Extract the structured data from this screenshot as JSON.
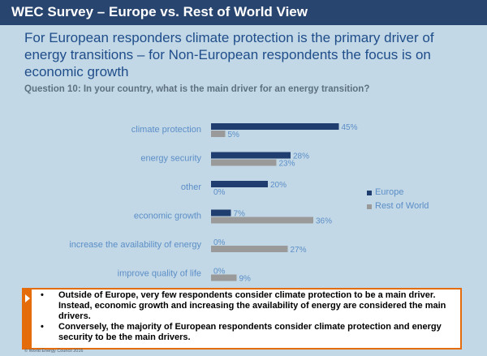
{
  "header": {
    "title": "WEC Survey – Europe vs. Rest of World View"
  },
  "headline": "For European responders climate protection is the primary driver of energy transitions – for Non-European respondents the focus is on economic growth",
  "question": "Question 10: In your country, what is the main driver for an energy transition?",
  "chart_data": {
    "type": "bar",
    "orientation": "horizontal",
    "categories": [
      "climate protection",
      "energy security",
      "other",
      "economic growth",
      "increase the availability of energy",
      "improve quality of life"
    ],
    "series": [
      {
        "name": "Europe",
        "values": [
          45,
          28,
          20,
          7,
          0,
          0
        ],
        "color": "#1f3d6f"
      },
      {
        "name": "Rest of World",
        "values": [
          5,
          23,
          0,
          36,
          27,
          9
        ],
        "color": "#9a9a9a"
      }
    ],
    "value_suffix": "%",
    "xlim": [
      0,
      50
    ],
    "grid": false,
    "legend_position": "right"
  },
  "callout": {
    "bullets": [
      "Outside of Europe, very few respondents consider climate protection to be a main driver. Instead, economic growth and increasing the availability of energy are considered the main drivers.",
      "Conversely, the majority of European respondents consider climate protection and energy security to be the main drivers."
    ]
  },
  "footer": {
    "copyright": "© World Energy Council 2016"
  },
  "colors": {
    "header_bg": "#28456f",
    "headline": "#1e4d8a",
    "background": "#c3d8e6",
    "callout_border": "#e46c0a",
    "category_label": "#5b8ec7"
  }
}
